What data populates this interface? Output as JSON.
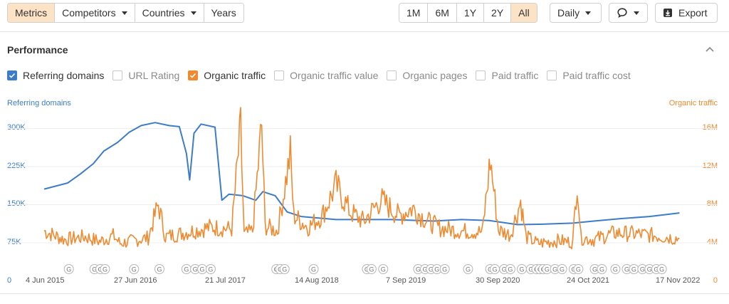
{
  "toolbar": {
    "left_tabs": [
      {
        "label": "Metrics",
        "active": true
      },
      {
        "label": "Competitors",
        "dropdown": true
      },
      {
        "label": "Countries",
        "dropdown": true
      },
      {
        "label": "Years"
      }
    ],
    "ranges": [
      {
        "label": "1M"
      },
      {
        "label": "6M"
      },
      {
        "label": "1Y"
      },
      {
        "label": "2Y"
      },
      {
        "label": "All",
        "active": true
      }
    ],
    "interval": {
      "label": "Daily"
    },
    "annotations_icon": "comment-icon",
    "export": {
      "label": "Export",
      "icon": "export-icon"
    }
  },
  "performance": {
    "title": "Performance",
    "collapse_icon": "chevron-up-icon",
    "metrics": [
      {
        "label": "Referring domains",
        "checked": true,
        "color": "#3d7cc9"
      },
      {
        "label": "URL Rating",
        "checked": false
      },
      {
        "label": "Organic traffic",
        "checked": true,
        "color": "#f08a30"
      },
      {
        "label": "Organic traffic value",
        "checked": false
      },
      {
        "label": "Organic pages",
        "checked": false
      },
      {
        "label": "Paid traffic",
        "checked": false
      },
      {
        "label": "Paid traffic cost",
        "checked": false
      }
    ]
  },
  "chart_data": {
    "type": "line",
    "left_axis": {
      "title": "Referring domains",
      "ticks": [
        "300K",
        "225K",
        "150K",
        "75K",
        "0"
      ],
      "range": [
        0,
        300000
      ],
      "color": "#3d7cc9"
    },
    "right_axis": {
      "title": "Organic traffic",
      "ticks": [
        "16M",
        "12M",
        "8M",
        "4M",
        "0"
      ],
      "range": [
        0,
        16000000
      ],
      "color": "#f08a30"
    },
    "x_ticks": [
      "4 Jun 2015",
      "27 Jun 2016",
      "21 Jul 2017",
      "14 Aug 2018",
      "7 Sep 2019",
      "30 Sep 2020",
      "24 Oct 2021",
      "17 Nov 2022"
    ],
    "x_range": [
      "2015-06-04",
      "2023-01-15"
    ],
    "grid": true,
    "series": [
      {
        "name": "Referring domains",
        "color": "#3d7cc9",
        "axis": "left",
        "points": [
          [
            "2015-06-04",
            180000
          ],
          [
            "2015-09-15",
            192000
          ],
          [
            "2015-11-10",
            210000
          ],
          [
            "2016-01-05",
            230000
          ],
          [
            "2016-02-20",
            255000
          ],
          [
            "2016-04-20",
            272000
          ],
          [
            "2016-06-10",
            292000
          ],
          [
            "2016-08-01",
            305000
          ],
          [
            "2016-10-01",
            311000
          ],
          [
            "2016-12-01",
            305000
          ],
          [
            "2017-01-15",
            303000
          ],
          [
            "2017-02-15",
            250000
          ],
          [
            "2017-03-01",
            198000
          ],
          [
            "2017-03-20",
            290000
          ],
          [
            "2017-04-20",
            308000
          ],
          [
            "2017-06-20",
            302000
          ],
          [
            "2017-07-20",
            158000
          ],
          [
            "2017-08-20",
            170000
          ],
          [
            "2017-10-20",
            167000
          ],
          [
            "2017-12-15",
            158000
          ],
          [
            "2018-01-15",
            175000
          ],
          [
            "2018-03-10",
            167000
          ],
          [
            "2018-05-01",
            135000
          ],
          [
            "2018-07-01",
            126000
          ],
          [
            "2018-12-01",
            120000
          ],
          [
            "2019-08-01",
            120000
          ],
          [
            "2020-02-01",
            117000
          ],
          [
            "2020-06-01",
            120000
          ],
          [
            "2020-10-01",
            118000
          ],
          [
            "2021-02-01",
            110000
          ],
          [
            "2021-06-01",
            111000
          ],
          [
            "2021-10-01",
            113000
          ],
          [
            "2022-01-01",
            117000
          ],
          [
            "2022-05-01",
            122000
          ],
          [
            "2022-09-01",
            126000
          ],
          [
            "2023-01-10",
            133000
          ]
        ]
      },
      {
        "name": "Organic traffic",
        "color": "#f08a30",
        "axis": "right",
        "points": [
          [
            "2015-06-04",
            5200000
          ],
          [
            "2015-09-01",
            4300000
          ],
          [
            "2015-12-01",
            4600000
          ],
          [
            "2016-02-01",
            4100000
          ],
          [
            "2016-04-01",
            4700000
          ],
          [
            "2016-05-01",
            3900000
          ],
          [
            "2016-07-01",
            4200000
          ],
          [
            "2016-09-01",
            4500000
          ],
          [
            "2016-10-15",
            8000000
          ],
          [
            "2016-11-15",
            4600000
          ],
          [
            "2017-01-15",
            4900000
          ],
          [
            "2017-04-01",
            5300000
          ],
          [
            "2017-06-01",
            5600000
          ],
          [
            "2017-09-01",
            5400000
          ],
          [
            "2017-10-10",
            16000000
          ],
          [
            "2017-10-25",
            4800000
          ],
          [
            "2017-12-01",
            5200000
          ],
          [
            "2018-01-10",
            16300000
          ],
          [
            "2018-01-25",
            5700000
          ],
          [
            "2018-03-20",
            5200000
          ],
          [
            "2018-05-15",
            13300000
          ],
          [
            "2018-05-30",
            6800000
          ],
          [
            "2018-08-01",
            5600000
          ],
          [
            "2018-10-01",
            6800000
          ],
          [
            "2018-12-01",
            10000000
          ],
          [
            "2019-02-01",
            7200000
          ],
          [
            "2019-04-01",
            6200000
          ],
          [
            "2019-06-15",
            8500000
          ],
          [
            "2019-09-01",
            6800000
          ],
          [
            "2019-11-01",
            7600000
          ],
          [
            "2020-01-01",
            6300000
          ],
          [
            "2020-03-01",
            5500000
          ],
          [
            "2020-06-01",
            5200000
          ],
          [
            "2020-09-01",
            5100000
          ],
          [
            "2020-10-05",
            12700000
          ],
          [
            "2020-11-10",
            5300000
          ],
          [
            "2021-01-01",
            4800000
          ],
          [
            "2021-02-15",
            8300000
          ],
          [
            "2021-03-10",
            4600000
          ],
          [
            "2021-05-01",
            3900000
          ],
          [
            "2021-08-01",
            4200000
          ],
          [
            "2021-10-01",
            4000000
          ],
          [
            "2021-10-20",
            10700000
          ],
          [
            "2021-11-05",
            4500000
          ],
          [
            "2022-01-01",
            4300000
          ],
          [
            "2022-04-01",
            5000000
          ],
          [
            "2022-07-01",
            4900000
          ],
          [
            "2022-10-01",
            4700000
          ],
          [
            "2023-01-10",
            4400000
          ]
        ]
      }
    ],
    "annotation_markers": {
      "label": "G",
      "dates": [
        "2015-09-20",
        "2016-01-10",
        "2016-02-05",
        "2016-02-25",
        "2016-07-01",
        "2016-10-20",
        "2017-02-15",
        "2017-03-25",
        "2017-04-25",
        "2017-06-01",
        "2018-03-15",
        "2018-04-01",
        "2018-04-20",
        "2018-08-25",
        "2019-04-15",
        "2019-05-05",
        "2019-06-25",
        "2019-11-25",
        "2019-12-25",
        "2020-01-20",
        "2020-02-15",
        "2020-03-20",
        "2020-06-30",
        "2020-10-05",
        "2020-10-25",
        "2020-12-05",
        "2021-01-01",
        "2021-02-20",
        "2021-04-01",
        "2021-04-25",
        "2021-05-10",
        "2021-05-25",
        "2021-06-10",
        "2021-07-15",
        "2021-08-15",
        "2021-10-05",
        "2021-10-25",
        "2022-01-05",
        "2022-02-05",
        "2022-04-05",
        "2022-05-25",
        "2022-06-25",
        "2022-08-01",
        "2022-09-01",
        "2022-10-01",
        "2022-10-25"
      ]
    }
  }
}
